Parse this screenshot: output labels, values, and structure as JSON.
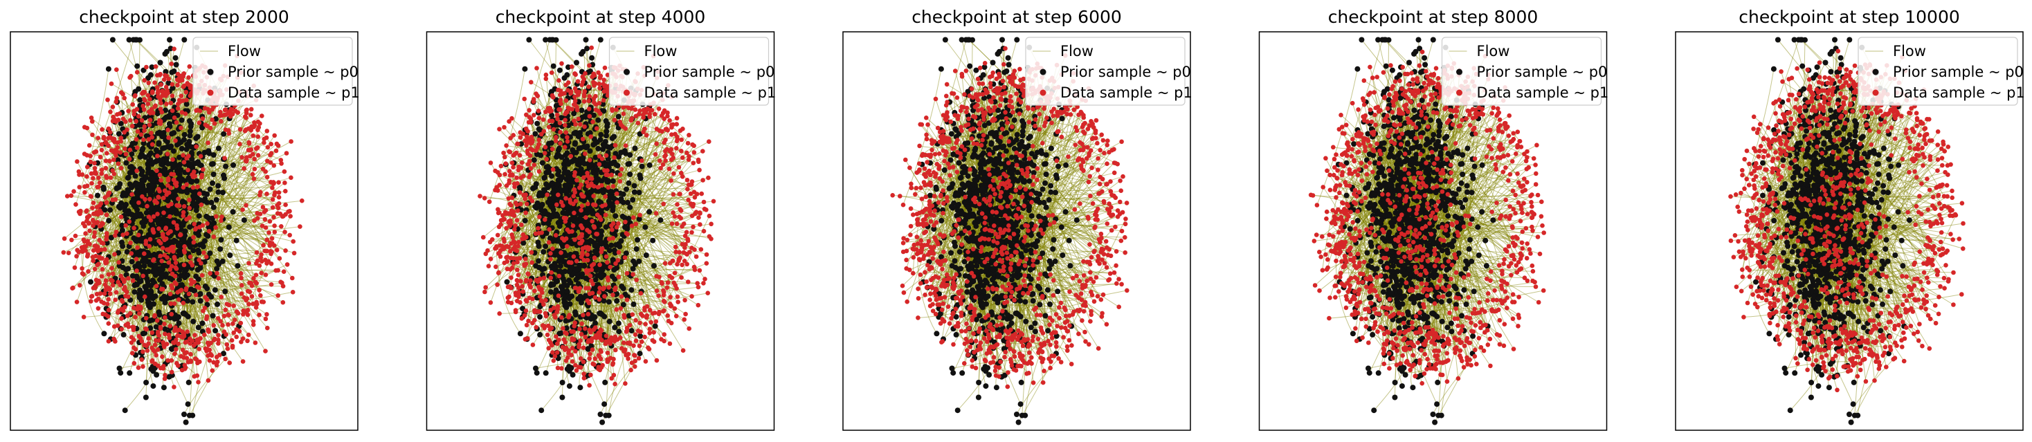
{
  "figure": {
    "colors": {
      "flow": "#808000",
      "prior": "#111111",
      "data": "#d62728",
      "frame": "#000000",
      "legend_border": "#cccccc"
    }
  },
  "legend": {
    "placement": "upper-right",
    "entries": [
      {
        "label": "Flow",
        "marker": "line",
        "color": "#808000"
      },
      {
        "label": "Prior sample ~ p0",
        "marker": "dot",
        "color": "#111111"
      },
      {
        "label": "Data sample ~ p1",
        "marker": "dot",
        "color": "#d62728"
      }
    ]
  },
  "chart_data": [
    {
      "type": "scatter",
      "title": "checkpoint at step 2000",
      "xlabel": "",
      "ylabel": "",
      "ticks": "none",
      "grid": false,
      "legend": "top-right",
      "series": [
        {
          "name": "Flow",
          "kind": "trajectories"
        },
        {
          "name": "Prior sample ~ p0",
          "kind": "points"
        },
        {
          "name": "Data sample ~ p1",
          "kind": "points"
        }
      ]
    },
    {
      "type": "scatter",
      "title": "checkpoint at step 4000",
      "xlabel": "",
      "ylabel": "",
      "ticks": "none",
      "grid": false,
      "legend": "top-right",
      "series": [
        {
          "name": "Flow",
          "kind": "trajectories"
        },
        {
          "name": "Prior sample ~ p0",
          "kind": "points"
        },
        {
          "name": "Data sample ~ p1",
          "kind": "points"
        }
      ]
    },
    {
      "type": "scatter",
      "title": "checkpoint at step 6000",
      "xlabel": "",
      "ylabel": "",
      "ticks": "none",
      "grid": false,
      "legend": "top-right",
      "series": [
        {
          "name": "Flow",
          "kind": "trajectories"
        },
        {
          "name": "Prior sample ~ p0",
          "kind": "points"
        },
        {
          "name": "Data sample ~ p1",
          "kind": "points"
        }
      ]
    },
    {
      "type": "scatter",
      "title": "checkpoint at step 8000",
      "xlabel": "",
      "ylabel": "",
      "ticks": "none",
      "grid": false,
      "legend": "top-right",
      "series": [
        {
          "name": "Flow",
          "kind": "trajectories"
        },
        {
          "name": "Prior sample ~ p0",
          "kind": "points"
        },
        {
          "name": "Data sample ~ p1",
          "kind": "points"
        }
      ]
    },
    {
      "type": "scatter",
      "title": "checkpoint at step 10000",
      "xlabel": "",
      "ylabel": "",
      "ticks": "none",
      "grid": false,
      "legend": "top-right",
      "series": [
        {
          "name": "Flow",
          "kind": "trajectories"
        },
        {
          "name": "Prior sample ~ p0",
          "kind": "points"
        },
        {
          "name": "Data sample ~ p1",
          "kind": "points"
        }
      ]
    }
  ]
}
